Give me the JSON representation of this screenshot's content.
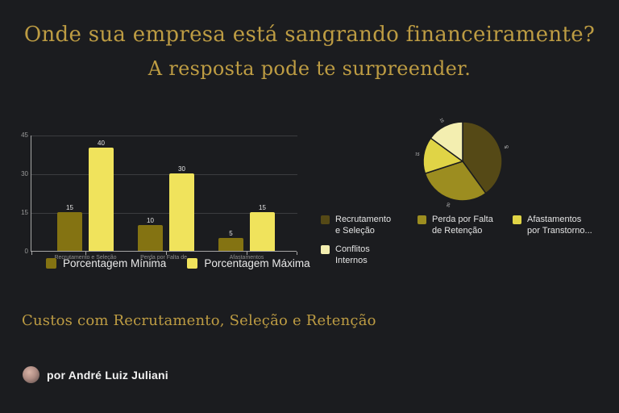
{
  "title": {
    "line1": "Onde sua empresa está sangrando financeiramente?",
    "line2": "A resposta pode te surpreender."
  },
  "footer": {
    "caption": "Custos com Recrutamento, Seleção e Retenção"
  },
  "byline": {
    "text": "por André Luiz Juliani"
  },
  "colors": {
    "background": "#1b1c1f",
    "gold_title": "#bd9c43",
    "series_min": "#847312",
    "series_max": "#f0e35c"
  },
  "chart_data": [
    {
      "type": "bar",
      "title": "",
      "categories": [
        "Recrutamento e Seleção",
        "Perda por Falta de...",
        "Afastamentos"
      ],
      "series": [
        {
          "name": "Porcentagem Mínima",
          "color": "#847312",
          "values": [
            15,
            10,
            5
          ]
        },
        {
          "name": "Porcentagem Máxima",
          "color": "#f0e35c",
          "values": [
            40,
            30,
            15
          ]
        }
      ],
      "ylim": [
        0,
        45
      ],
      "yticks": [
        0,
        15,
        30,
        45
      ],
      "grid": true,
      "legend_position": "bottom",
      "value_labels": true
    },
    {
      "type": "pie",
      "labels": [
        "Recrutamento e Seleção",
        "Perda por Falta de Retenção",
        "Afastamentos por Transtorno...",
        "Conflitos Internos"
      ],
      "legend_labels": [
        "Recrutamento\ne Seleção",
        "Perda por Falta\nde Retenção",
        "Afastamentos\npor Transtorno...",
        "Conflitos\nInternos"
      ],
      "values": [
        40,
        30,
        15,
        15
      ],
      "colors": [
        "#554916",
        "#9c8d20",
        "#e0d446",
        "#f3eeb0"
      ],
      "start_angle_deg": 0,
      "direction": "clockwise",
      "legend_position": "below-right",
      "value_labels": true
    }
  ]
}
